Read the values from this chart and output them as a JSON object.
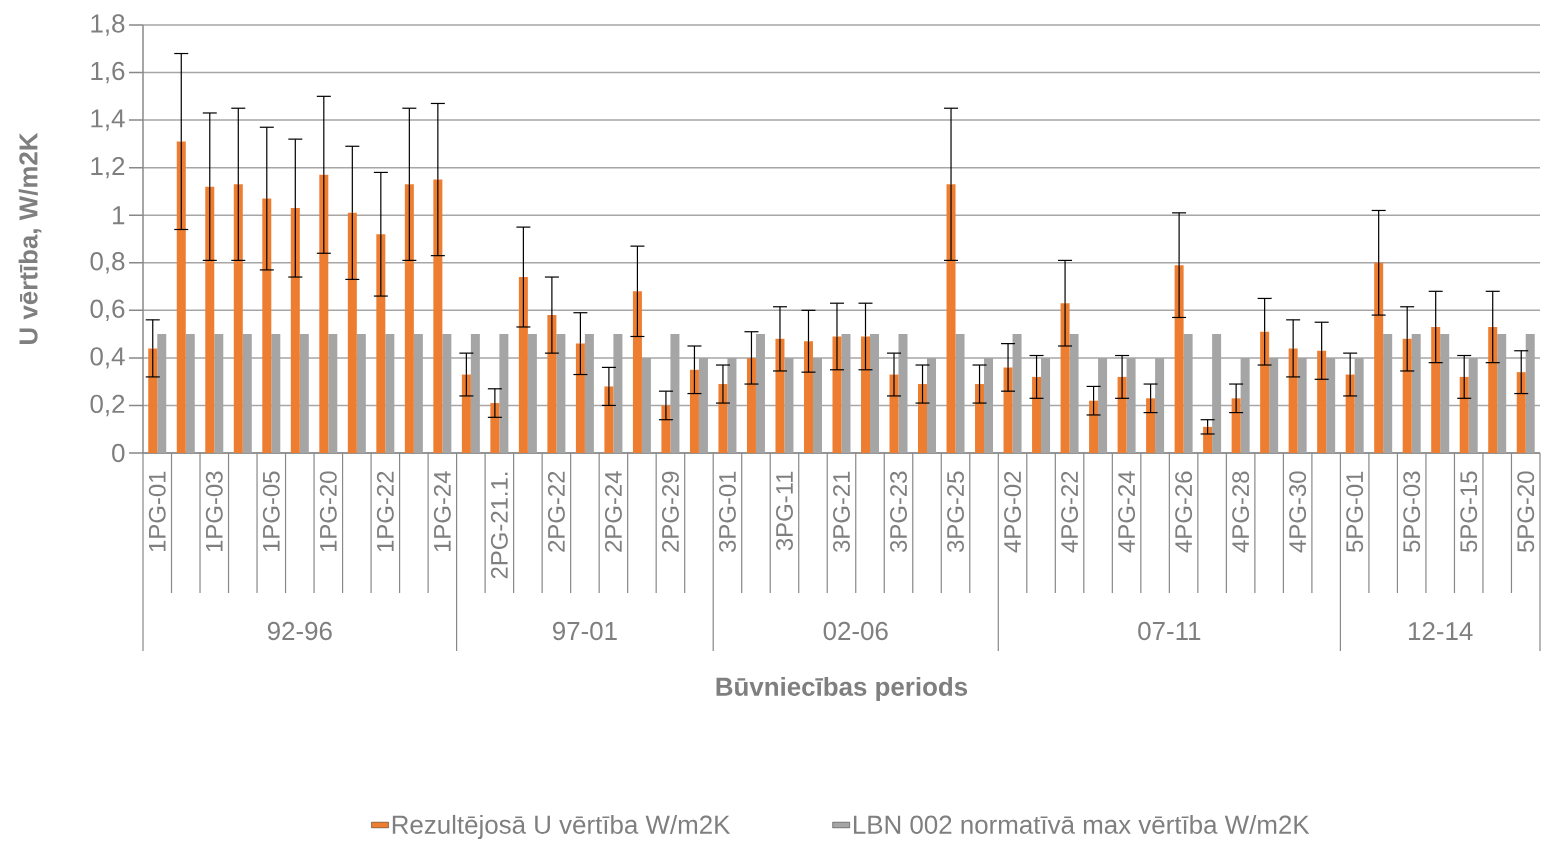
{
  "chart_data": {
    "type": "bar",
    "ylabel": "U vērtība, W/m2K",
    "xlabel": "Būvniecības periods",
    "categories": [
      "1PG-01",
      null,
      "1PG-03",
      null,
      "1PG-05",
      null,
      "1PG-20",
      null,
      "1PG-22",
      null,
      "1PG-24",
      null,
      "2PG-21.1.",
      null,
      "2PG-22",
      null,
      "2PG-24",
      null,
      "2PG-29",
      null,
      "3PG-01",
      null,
      "3PG-11",
      null,
      "3PG-21",
      null,
      "3PG-23",
      null,
      "3PG-25",
      null,
      "4PG-02",
      null,
      "4PG-22",
      null,
      "4PG-24",
      null,
      "4PG-26",
      null,
      "4PG-28",
      null,
      "4PG-30",
      null,
      "5PG-01",
      null,
      "5PG-03",
      null,
      "5PG-15",
      null,
      "5PG-20"
    ],
    "series": [
      {
        "name": "Rezultējosā U vērtība W/m2K",
        "color": "#ed7d31",
        "values": [
          0.44,
          1.31,
          1.12,
          1.13,
          1.07,
          1.03,
          1.17,
          1.01,
          0.92,
          1.13,
          1.15,
          0.33,
          0.21,
          0.74,
          0.58,
          0.46,
          0.28,
          0.68,
          0.2,
          0.35,
          0.29,
          0.4,
          0.48,
          0.47,
          0.49,
          0.49,
          0.33,
          0.29,
          1.13,
          0.29,
          0.36,
          0.32,
          0.63,
          0.22,
          0.32,
          0.23,
          0.79,
          0.11,
          0.23,
          0.51,
          0.44,
          0.43,
          0.33,
          0.8,
          0.48,
          0.53,
          0.32,
          0.53,
          0.34
        ],
        "errors": [
          0.12,
          0.37,
          0.31,
          0.32,
          0.3,
          0.29,
          0.33,
          0.28,
          0.26,
          0.32,
          0.32,
          0.09,
          0.06,
          0.21,
          0.16,
          0.13,
          0.08,
          0.19,
          0.06,
          0.1,
          0.08,
          0.11,
          0.135,
          0.13,
          0.14,
          0.14,
          0.09,
          0.08,
          0.32,
          0.08,
          0.1,
          0.09,
          0.18,
          0.06,
          0.09,
          0.06,
          0.22,
          0.03,
          0.06,
          0.14,
          0.12,
          0.12,
          0.09,
          0.22,
          0.135,
          0.15,
          0.09,
          0.15,
          0.09
        ]
      },
      {
        "name": "LBN 002 normatīvā max  vērtība W/m2K",
        "color": "#a5a5a5",
        "values": [
          0.5,
          0.5,
          0.5,
          0.5,
          0.5,
          0.5,
          0.5,
          0.5,
          0.5,
          0.5,
          0.5,
          0.5,
          0.5,
          0.5,
          0.5,
          0.5,
          0.5,
          0.4,
          0.5,
          0.4,
          0.4,
          0.5,
          0.4,
          0.4,
          0.5,
          0.5,
          0.5,
          0.4,
          0.5,
          0.4,
          0.5,
          0.4,
          0.5,
          0.4,
          0.4,
          0.4,
          0.5,
          0.5,
          0.4,
          0.4,
          0.4,
          0.4,
          0.4,
          0.5,
          0.5,
          0.5,
          0.4,
          0.5,
          0.5
        ]
      }
    ],
    "ylim": [
      0,
      1.8
    ],
    "yticks": [
      0,
      {
        "value": 0.2,
        "label": "0,2"
      },
      {
        "value": 0.4,
        "label": "0,4"
      },
      {
        "value": 0.6,
        "label": "0,6"
      },
      {
        "value": 0.8,
        "label": "0,8"
      },
      1,
      {
        "value": 1.2,
        "label": "1,2"
      },
      {
        "value": 1.4,
        "label": "1,4"
      },
      {
        "value": 1.6,
        "label": "1,6"
      },
      {
        "value": 1.8,
        "label": "1,8"
      }
    ],
    "grid": "y",
    "legend": "bottom",
    "annotations": [
      "92-96",
      "97-01",
      "02-06",
      "07-11",
      "12-14"
    ]
  }
}
